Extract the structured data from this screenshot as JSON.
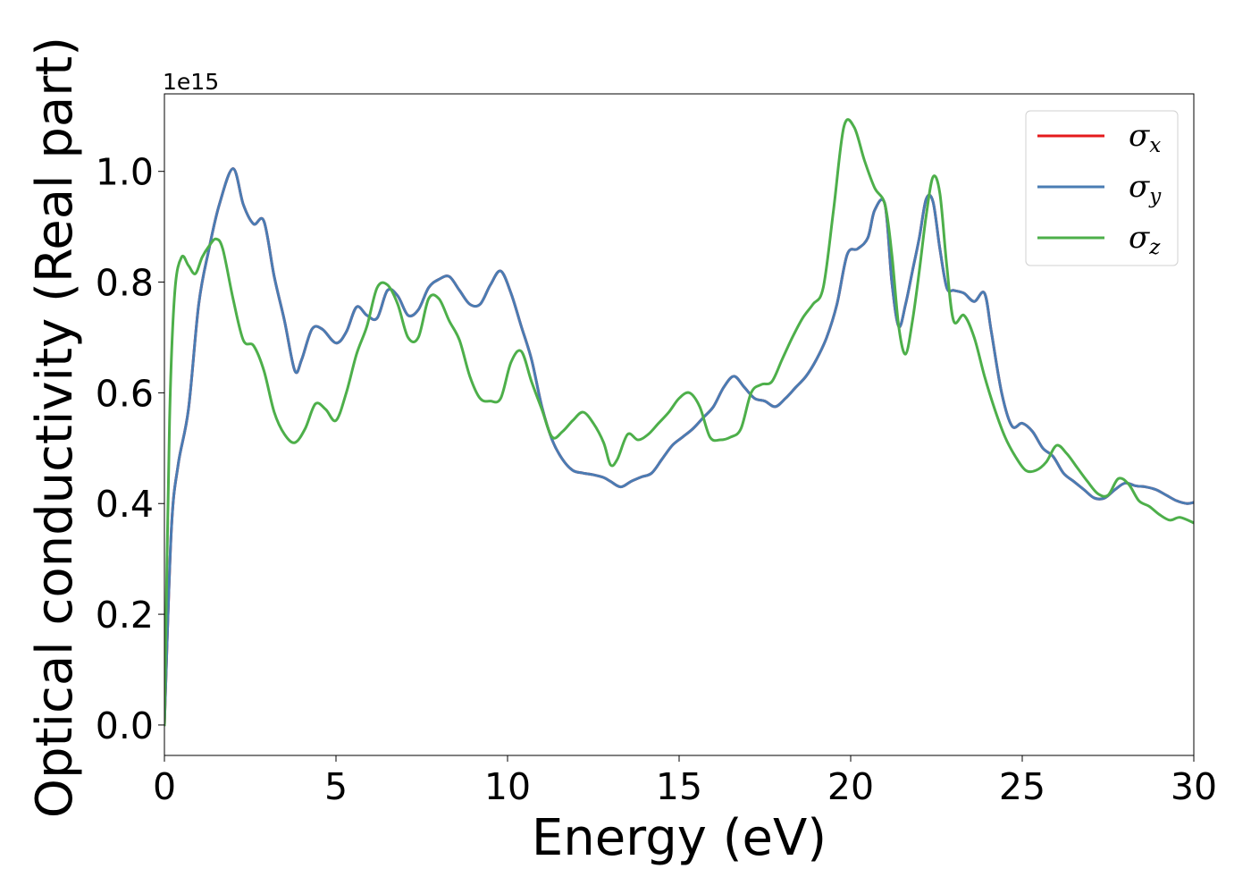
{
  "chart_data": {
    "type": "line",
    "xlabel": "Energy (eV)",
    "ylabel": "Optical conductivity (Real part)",
    "y_offset_label": "1e15",
    "xlim": [
      0,
      30
    ],
    "ylim": [
      -0.055,
      1.14
    ],
    "x_ticks": [
      0,
      5,
      10,
      15,
      20,
      25,
      30
    ],
    "x_tick_labels": [
      "0",
      "5",
      "10",
      "15",
      "20",
      "25",
      "30"
    ],
    "y_ticks": [
      0.0,
      0.2,
      0.4,
      0.6,
      0.8,
      1.0
    ],
    "y_tick_labels": [
      "0.0",
      "0.2",
      "0.4",
      "0.6",
      "0.8",
      "1.0"
    ],
    "grid": false,
    "legend_position": "top-right",
    "series": [
      {
        "name": "σx",
        "name_base": "σ",
        "name_sub": "x",
        "color": "#e41a1c",
        "x": [
          0,
          0.2,
          0.4,
          0.7,
          1.0,
          1.3,
          1.6,
          2.0,
          2.3,
          2.6,
          2.9,
          3.2,
          3.5,
          3.8,
          4.0,
          4.3,
          4.6,
          5.0,
          5.3,
          5.6,
          5.9,
          6.2,
          6.5,
          6.8,
          7.1,
          7.4,
          7.7,
          8.0,
          8.3,
          8.6,
          8.9,
          9.2,
          9.5,
          9.8,
          10.1,
          10.4,
          10.7,
          11.0,
          11.3,
          11.6,
          11.9,
          12.2,
          12.5,
          12.8,
          13.0,
          13.3,
          13.6,
          13.9,
          14.2,
          14.5,
          14.8,
          15.1,
          15.4,
          15.7,
          16.0,
          16.3,
          16.6,
          16.9,
          17.2,
          17.5,
          17.8,
          18.1,
          18.4,
          18.7,
          19.0,
          19.3,
          19.6,
          19.9,
          20.2,
          20.5,
          20.7,
          21.0,
          21.2,
          21.4,
          21.6,
          21.8,
          22.0,
          22.2,
          22.4,
          22.6,
          22.8,
          23.0,
          23.3,
          23.6,
          23.9,
          24.1,
          24.4,
          24.7,
          25.0,
          25.3,
          25.6,
          25.9,
          26.2,
          26.5,
          26.8,
          27.1,
          27.4,
          27.7,
          28.0,
          28.3,
          28.6,
          28.9,
          29.2,
          29.5,
          29.8,
          30.0
        ],
        "y": [
          0.0,
          0.35,
          0.47,
          0.57,
          0.76,
          0.86,
          0.94,
          1.005,
          0.94,
          0.905,
          0.91,
          0.81,
          0.73,
          0.64,
          0.66,
          0.715,
          0.715,
          0.69,
          0.71,
          0.755,
          0.74,
          0.735,
          0.785,
          0.775,
          0.74,
          0.75,
          0.79,
          0.805,
          0.81,
          0.785,
          0.76,
          0.76,
          0.795,
          0.82,
          0.78,
          0.72,
          0.66,
          0.575,
          0.515,
          0.48,
          0.46,
          0.455,
          0.452,
          0.447,
          0.44,
          0.43,
          0.44,
          0.448,
          0.455,
          0.48,
          0.505,
          0.52,
          0.535,
          0.555,
          0.575,
          0.61,
          0.63,
          0.61,
          0.59,
          0.585,
          0.575,
          0.59,
          0.61,
          0.63,
          0.66,
          0.7,
          0.76,
          0.85,
          0.86,
          0.88,
          0.93,
          0.94,
          0.8,
          0.72,
          0.76,
          0.82,
          0.88,
          0.95,
          0.945,
          0.86,
          0.79,
          0.785,
          0.78,
          0.765,
          0.78,
          0.71,
          0.6,
          0.54,
          0.545,
          0.53,
          0.5,
          0.485,
          0.455,
          0.44,
          0.425,
          0.41,
          0.41,
          0.425,
          0.437,
          0.432,
          0.43,
          0.425,
          0.415,
          0.405,
          0.4,
          0.402
        ]
      },
      {
        "name": "σy",
        "name_base": "σ",
        "name_sub": "y",
        "color": "#4a7cb3",
        "x": [
          0,
          0.2,
          0.4,
          0.7,
          1.0,
          1.3,
          1.6,
          2.0,
          2.3,
          2.6,
          2.9,
          3.2,
          3.5,
          3.8,
          4.0,
          4.3,
          4.6,
          5.0,
          5.3,
          5.6,
          5.9,
          6.2,
          6.5,
          6.8,
          7.1,
          7.4,
          7.7,
          8.0,
          8.3,
          8.6,
          8.9,
          9.2,
          9.5,
          9.8,
          10.1,
          10.4,
          10.7,
          11.0,
          11.3,
          11.6,
          11.9,
          12.2,
          12.5,
          12.8,
          13.0,
          13.3,
          13.6,
          13.9,
          14.2,
          14.5,
          14.8,
          15.1,
          15.4,
          15.7,
          16.0,
          16.3,
          16.6,
          16.9,
          17.2,
          17.5,
          17.8,
          18.1,
          18.4,
          18.7,
          19.0,
          19.3,
          19.6,
          19.9,
          20.2,
          20.5,
          20.7,
          21.0,
          21.2,
          21.4,
          21.6,
          21.8,
          22.0,
          22.2,
          22.4,
          22.6,
          22.8,
          23.0,
          23.3,
          23.6,
          23.9,
          24.1,
          24.4,
          24.7,
          25.0,
          25.3,
          25.6,
          25.9,
          26.2,
          26.5,
          26.8,
          27.1,
          27.4,
          27.7,
          28.0,
          28.3,
          28.6,
          28.9,
          29.2,
          29.5,
          29.8,
          30.0
        ],
        "y": [
          0.0,
          0.35,
          0.47,
          0.57,
          0.76,
          0.86,
          0.94,
          1.005,
          0.94,
          0.905,
          0.91,
          0.81,
          0.73,
          0.64,
          0.66,
          0.715,
          0.715,
          0.69,
          0.71,
          0.755,
          0.74,
          0.735,
          0.785,
          0.775,
          0.74,
          0.75,
          0.79,
          0.805,
          0.81,
          0.785,
          0.76,
          0.76,
          0.795,
          0.82,
          0.78,
          0.72,
          0.66,
          0.575,
          0.515,
          0.48,
          0.46,
          0.455,
          0.452,
          0.447,
          0.44,
          0.43,
          0.44,
          0.448,
          0.455,
          0.48,
          0.505,
          0.52,
          0.535,
          0.555,
          0.575,
          0.61,
          0.63,
          0.61,
          0.59,
          0.585,
          0.575,
          0.59,
          0.61,
          0.63,
          0.66,
          0.7,
          0.76,
          0.85,
          0.86,
          0.88,
          0.93,
          0.94,
          0.8,
          0.72,
          0.76,
          0.82,
          0.88,
          0.95,
          0.945,
          0.86,
          0.79,
          0.785,
          0.78,
          0.765,
          0.78,
          0.71,
          0.6,
          0.54,
          0.545,
          0.53,
          0.5,
          0.485,
          0.455,
          0.44,
          0.425,
          0.41,
          0.41,
          0.425,
          0.437,
          0.432,
          0.43,
          0.425,
          0.415,
          0.405,
          0.4,
          0.402
        ]
      },
      {
        "name": "σz",
        "name_base": "σ",
        "name_sub": "z",
        "color": "#4daf4a",
        "x": [
          0,
          0.15,
          0.3,
          0.5,
          0.7,
          0.9,
          1.1,
          1.3,
          1.5,
          1.7,
          2.0,
          2.3,
          2.6,
          2.9,
          3.2,
          3.5,
          3.8,
          4.1,
          4.4,
          4.7,
          5.0,
          5.3,
          5.6,
          5.9,
          6.2,
          6.5,
          6.8,
          7.1,
          7.4,
          7.7,
          8.0,
          8.3,
          8.6,
          8.9,
          9.2,
          9.5,
          9.8,
          10.1,
          10.4,
          10.7,
          11.0,
          11.3,
          11.6,
          11.9,
          12.2,
          12.5,
          12.8,
          13.0,
          13.2,
          13.5,
          13.8,
          14.1,
          14.4,
          14.7,
          15.0,
          15.3,
          15.6,
          15.9,
          16.2,
          16.5,
          16.8,
          17.1,
          17.4,
          17.7,
          18.0,
          18.3,
          18.6,
          18.9,
          19.2,
          19.5,
          19.8,
          20.1,
          20.4,
          20.7,
          21.0,
          21.2,
          21.4,
          21.6,
          21.8,
          22.0,
          22.2,
          22.4,
          22.6,
          22.8,
          23.0,
          23.3,
          23.6,
          23.9,
          24.2,
          24.5,
          24.8,
          25.1,
          25.4,
          25.7,
          26.0,
          26.3,
          26.6,
          26.9,
          27.2,
          27.5,
          27.8,
          28.1,
          28.4,
          28.7,
          29.0,
          29.3,
          29.6,
          30.0
        ],
        "y": [
          0.0,
          0.55,
          0.78,
          0.845,
          0.83,
          0.815,
          0.845,
          0.865,
          0.878,
          0.86,
          0.77,
          0.695,
          0.685,
          0.64,
          0.565,
          0.525,
          0.51,
          0.535,
          0.58,
          0.57,
          0.55,
          0.6,
          0.67,
          0.72,
          0.79,
          0.795,
          0.76,
          0.7,
          0.7,
          0.77,
          0.77,
          0.73,
          0.695,
          0.63,
          0.59,
          0.585,
          0.59,
          0.655,
          0.675,
          0.62,
          0.57,
          0.52,
          0.53,
          0.55,
          0.565,
          0.545,
          0.51,
          0.47,
          0.48,
          0.525,
          0.515,
          0.525,
          0.545,
          0.565,
          0.59,
          0.6,
          0.575,
          0.52,
          0.515,
          0.52,
          0.535,
          0.6,
          0.615,
          0.62,
          0.66,
          0.7,
          0.735,
          0.76,
          0.79,
          0.93,
          1.08,
          1.08,
          1.02,
          0.97,
          0.94,
          0.85,
          0.72,
          0.67,
          0.73,
          0.82,
          0.92,
          0.99,
          0.96,
          0.83,
          0.73,
          0.74,
          0.7,
          0.63,
          0.57,
          0.52,
          0.485,
          0.46,
          0.46,
          0.475,
          0.505,
          0.49,
          0.465,
          0.44,
          0.418,
          0.415,
          0.445,
          0.435,
          0.405,
          0.395,
          0.38,
          0.37,
          0.375,
          0.365
        ]
      }
    ]
  }
}
